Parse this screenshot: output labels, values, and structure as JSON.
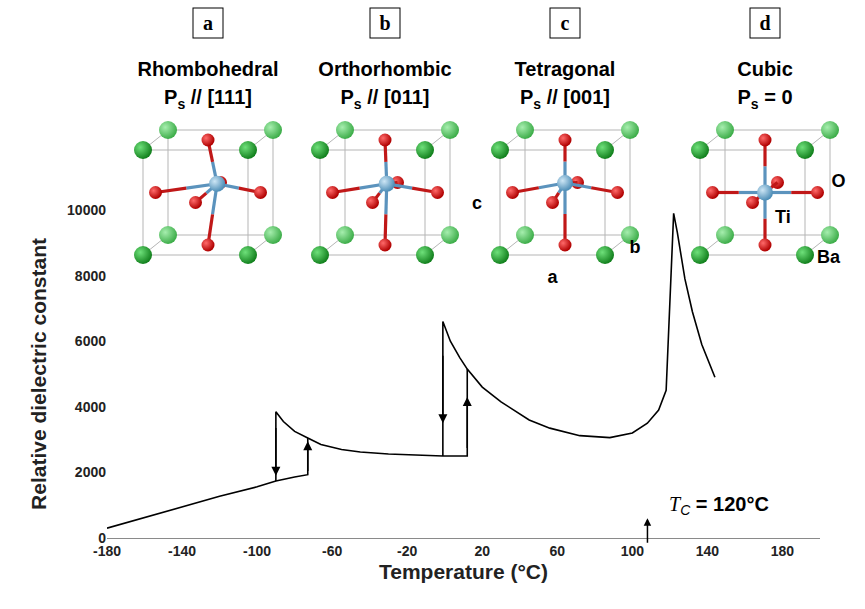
{
  "chart_data": {
    "type": "line",
    "x_label": "Temperature (°C)",
    "y_label": "Relative dielectric constant",
    "x": [
      -180,
      -160,
      -140,
      -120,
      -100,
      -90,
      -80,
      -73,
      -73,
      null,
      -90,
      -90,
      -86,
      -80,
      -73,
      -66,
      -55,
      -45,
      -30,
      -15,
      -1,
      12,
      12,
      null,
      -1,
      -1,
      3,
      8,
      12,
      20,
      30,
      45,
      56,
      72,
      88,
      100,
      108,
      114,
      118,
      122,
      124,
      128,
      132,
      137,
      144
    ],
    "values": [
      300,
      620,
      950,
      1270,
      1560,
      1740,
      1860,
      1930,
      3050,
      null,
      1740,
      3850,
      3550,
      3250,
      3050,
      2850,
      2700,
      2620,
      2560,
      2520,
      2500,
      2500,
      5150,
      null,
      2500,
      6600,
      6000,
      5500,
      5150,
      4600,
      4150,
      3600,
      3350,
      3120,
      3060,
      3200,
      3500,
      3900,
      4500,
      9900,
      9300,
      7900,
      6900,
      5900,
      4900
    ],
    "color": "#000000",
    "xlim": [
      -180,
      200
    ],
    "xticks": [
      -180,
      -140,
      -100,
      -60,
      -20,
      20,
      60,
      100,
      140,
      180
    ],
    "ylim": [
      0,
      10000
    ],
    "yticks": [
      0,
      2000,
      4000,
      6000,
      8000,
      10000
    ],
    "grid": false,
    "arrows": [
      {
        "x": -90,
        "from": 3400,
        "to": 1900
      },
      {
        "x": -73,
        "from": 2000,
        "to": 2950
      },
      {
        "x": -1,
        "from": 5600,
        "to": 3500
      },
      {
        "x": 12,
        "from": 2700,
        "to": 4300
      }
    ],
    "annotation": {
      "symbol": "T",
      "subscript": "C",
      "text": " = 120°C"
    }
  },
  "panels": [
    {
      "letter": "a",
      "title": "Rhombohedral",
      "polarization": {
        "symbol": "P",
        "subscript": "s",
        "text": " // [111]"
      },
      "labels": []
    },
    {
      "letter": "b",
      "title": "Orthorhombic",
      "polarization": {
        "symbol": "P",
        "subscript": "s",
        "text": " // [011]"
      },
      "labels": []
    },
    {
      "letter": "c",
      "title": "Tetragonal",
      "polarization": {
        "symbol": "P",
        "subscript": "s",
        "text": " // [001]"
      },
      "labels": [
        "c",
        "a",
        "b"
      ]
    },
    {
      "letter": "d",
      "title": "Cubic",
      "polarization": {
        "symbol": "P",
        "subscript": "s",
        "text": " = 0"
      },
      "labels": [
        "O",
        "Ti",
        "Ba"
      ]
    }
  ]
}
